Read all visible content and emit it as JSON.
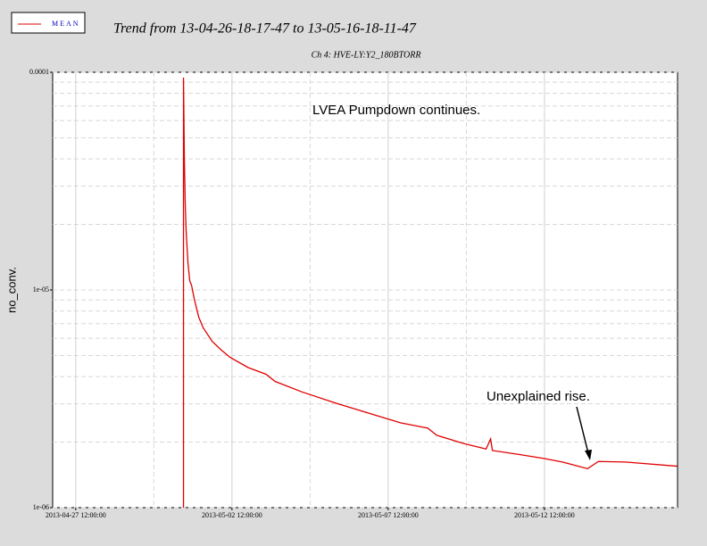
{
  "chart_data": {
    "type": "line",
    "title": "Trend from 13-04-26-18-17-47 to 13-05-16-18-11-47",
    "subtitle": "Ch 4: HVE-LY:Y2_180BTORR",
    "y_label": "no_conv.",
    "log_y": true,
    "grid": true,
    "legend": "top-left",
    "annotations": [
      "LVEA Pumpdown continues.",
      "Unexplained rise."
    ],
    "xlim": [
      "2013-04-26 18:17:47",
      "2013-05-16 18:11:47"
    ],
    "xticks": [
      "2013-04-27 12:00:00",
      "2013-05-02 12:00:00",
      "2013-05-07 12:00:00",
      "2013-05-12 12:00:00"
    ],
    "ylim": [
      1e-06,
      0.0001
    ],
    "yticks": [
      {
        "value": 1e-06,
        "label": "1e-06"
      },
      {
        "value": 1e-05,
        "label": "1e-05"
      },
      0.0001
    ],
    "x": [
      "2013-04-30 22:46:00",
      "2013-04-30 22:46:00",
      "2013-04-30 23:27:00",
      "2013-05-01 00:08:00",
      "2013-05-01 00:50:00",
      "2013-05-01 02:13:00",
      "2013-05-01 03:35:00",
      "2013-05-01 04:58:00",
      "2013-05-01 07:02:00",
      "2013-05-01 10:29:00",
      "2013-05-01 13:56:00",
      "2013-05-01 20:50:00",
      "2013-05-02 03:43:00",
      "2013-05-02 10:37:00",
      "2013-05-03 00:25:00",
      "2013-05-03 14:12:00",
      "2013-05-03 21:06:00",
      "2013-05-04 17:48:00",
      "2013-05-05 21:22:00",
      "2013-05-07 00:59:00",
      "2013-05-07 21:40:00",
      "2013-05-08 18:21:00",
      "2013-05-09 01:15:00",
      "2013-05-09 21:56:00",
      "2013-05-10 15:11:00",
      "2013-05-10 18:38:00",
      "2013-05-10 20:00:00",
      "2013-05-11 15:19:00",
      "2013-05-12 12:00:00",
      "2013-05-13 01:48:00",
      "2013-05-13 21:07:00",
      "2013-05-14 05:23:00",
      "2013-05-15 02:05:00",
      "2013-05-16 18:00:00"
    ],
    "series": [
      {
        "name": "MEAN",
        "color": "#e00000",
        "values": [
          1e-06,
          9.45e-05,
          3.93e-05,
          2.45e-05,
          1.85e-05,
          1.33e-05,
          1.1e-05,
          1.05e-05,
          9.1e-06,
          7.5e-06,
          6.7e-06,
          5.8e-06,
          5.3e-06,
          4.9e-06,
          4.4e-06,
          4.1e-06,
          3.8e-06,
          3.4e-06,
          3e-06,
          2.67e-06,
          2.45e-06,
          2.32e-06,
          2.15e-06,
          1.97e-06,
          1.86e-06,
          2.07e-06,
          1.83e-06,
          1.76e-06,
          1.68e-06,
          1.62e-06,
          1.51e-06,
          1.63e-06,
          1.62e-06,
          1.55e-06
        ]
      }
    ]
  }
}
